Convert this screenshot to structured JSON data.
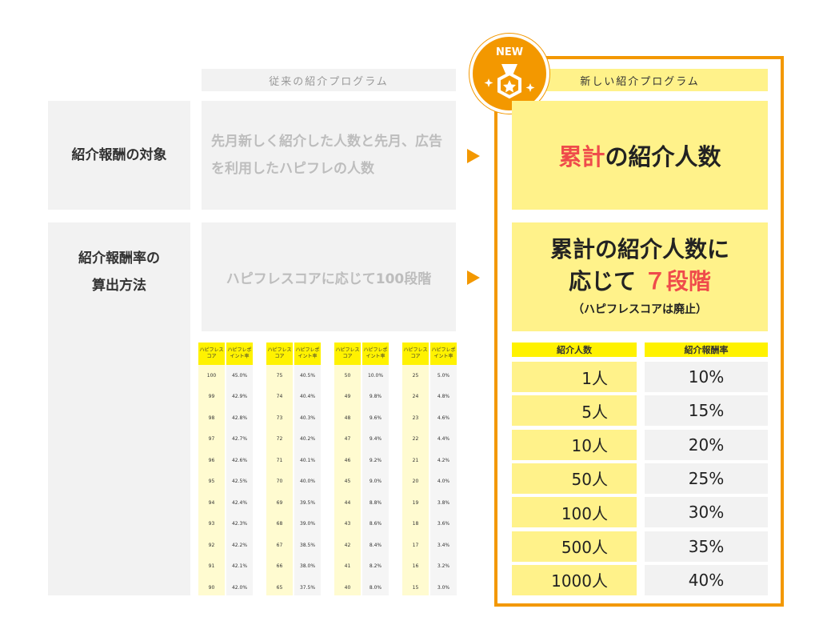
{
  "old_program": {
    "header": "従来の紹介プログラム",
    "target_text": "先月新しく紹介した人数と先月、広告を利用したハピフレの人数",
    "method_text": "ハピフレスコアに応じて100段階"
  },
  "new_program": {
    "badge": "NEW",
    "header": "新しい紹介プログラム",
    "target_highlight": "累計",
    "target_rest": "の紹介人数",
    "method_line1": "累計の紹介人数に",
    "method_line2_pre": "応じて",
    "method_line2_num": "７段階",
    "method_note": "（ハピフレスコアは廃止）"
  },
  "rows": {
    "target_label": "紹介報酬の対象",
    "method_label_1": "紹介報酬率の",
    "method_label_2": "算出方法"
  },
  "mini_tables": {
    "head_score": "ハピフレスコア",
    "head_point": "ハピフレポイント率",
    "tables": [
      [
        [
          "100",
          "45.0%"
        ],
        [
          "99",
          "42.9%"
        ],
        [
          "98",
          "42.8%"
        ],
        [
          "97",
          "42.7%"
        ],
        [
          "96",
          "42.6%"
        ],
        [
          "95",
          "42.5%"
        ],
        [
          "94",
          "42.4%"
        ],
        [
          "93",
          "42.3%"
        ],
        [
          "92",
          "42.2%"
        ],
        [
          "91",
          "42.1%"
        ],
        [
          "90",
          "42.0%"
        ]
      ],
      [
        [
          "75",
          "40.5%"
        ],
        [
          "74",
          "40.4%"
        ],
        [
          "73",
          "40.3%"
        ],
        [
          "72",
          "40.2%"
        ],
        [
          "71",
          "40.1%"
        ],
        [
          "70",
          "40.0%"
        ],
        [
          "69",
          "39.5%"
        ],
        [
          "68",
          "39.0%"
        ],
        [
          "67",
          "38.5%"
        ],
        [
          "66",
          "38.0%"
        ],
        [
          "65",
          "37.5%"
        ]
      ],
      [
        [
          "50",
          "10.0%"
        ],
        [
          "49",
          "9.8%"
        ],
        [
          "48",
          "9.6%"
        ],
        [
          "47",
          "9.4%"
        ],
        [
          "46",
          "9.2%"
        ],
        [
          "45",
          "9.0%"
        ],
        [
          "44",
          "8.8%"
        ],
        [
          "43",
          "8.6%"
        ],
        [
          "42",
          "8.4%"
        ],
        [
          "41",
          "8.2%"
        ],
        [
          "40",
          "8.0%"
        ]
      ],
      [
        [
          "25",
          "5.0%"
        ],
        [
          "24",
          "4.8%"
        ],
        [
          "23",
          "4.6%"
        ],
        [
          "22",
          "4.4%"
        ],
        [
          "21",
          "4.2%"
        ],
        [
          "20",
          "4.0%"
        ],
        [
          "19",
          "3.8%"
        ],
        [
          "18",
          "3.6%"
        ],
        [
          "17",
          "3.4%"
        ],
        [
          "16",
          "3.2%"
        ],
        [
          "15",
          "3.0%"
        ]
      ]
    ]
  },
  "rate_table": {
    "head_people": "紹介人数",
    "head_rate": "紹介報酬率",
    "rows": [
      {
        "people": "1人",
        "rate": "10%"
      },
      {
        "people": "5人",
        "rate": "15%"
      },
      {
        "people": "10人",
        "rate": "20%"
      },
      {
        "people": "50人",
        "rate": "25%"
      },
      {
        "people": "100人",
        "rate": "30%"
      },
      {
        "people": "500人",
        "rate": "35%"
      },
      {
        "people": "1000人",
        "rate": "40%"
      }
    ]
  },
  "colors": {
    "accent": "#f39800",
    "highlight_red": "#ef4b4b",
    "yellow": "#fff28a",
    "table_yellow": "#fff200"
  }
}
